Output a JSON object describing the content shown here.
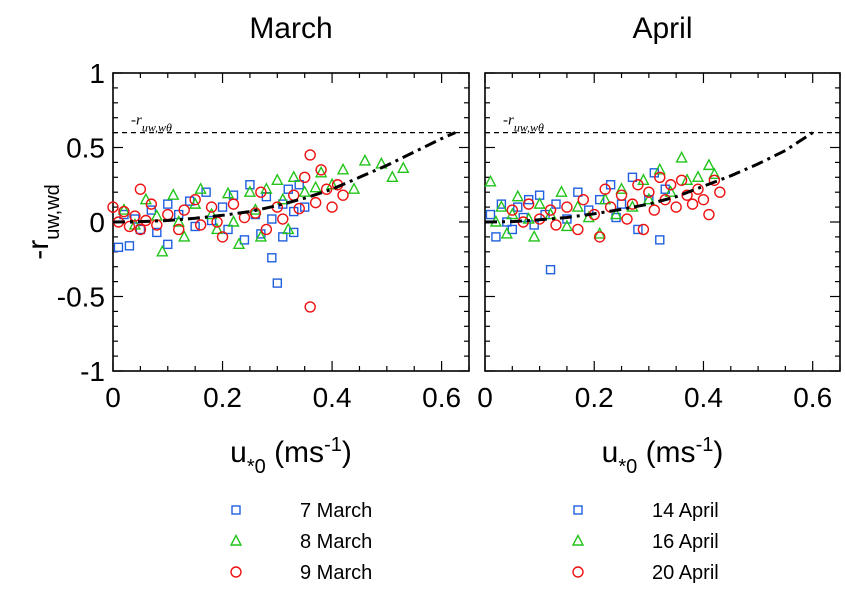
{
  "chart_data": [
    {
      "type": "scatter",
      "title": "March",
      "ylabel": "-r",
      "ylabel_sub": "uw,wd",
      "xlabel": "u",
      "xlabel_sub": "*0",
      "xlabel_unit": " (ms",
      "xlabel_sup": "-1",
      "xlabel_close": ")",
      "xlim": [
        0,
        0.65
      ],
      "ylim": [
        -1,
        1
      ],
      "xticks": [
        "0",
        "0.2",
        "0.4",
        "0.6"
      ],
      "yticks": [
        "1",
        "0.5",
        "0",
        "-0.5",
        "-1"
      ],
      "reference_line": {
        "y": 0.6,
        "label": "-r",
        "label_sub": "uw,wθ"
      },
      "fit_curve": [
        [
          0,
          0
        ],
        [
          0.05,
          0.003
        ],
        [
          0.1,
          0.01
        ],
        [
          0.15,
          0.025
        ],
        [
          0.2,
          0.045
        ],
        [
          0.25,
          0.07
        ],
        [
          0.3,
          0.11
        ],
        [
          0.35,
          0.16
        ],
        [
          0.4,
          0.22
        ],
        [
          0.45,
          0.3
        ],
        [
          0.5,
          0.38
        ],
        [
          0.55,
          0.47
        ],
        [
          0.6,
          0.56
        ],
        [
          0.625,
          0.6
        ]
      ],
      "series": [
        {
          "name": "7 March",
          "marker": "square",
          "color": "#1f5fe0",
          "points": [
            [
              0.01,
              -0.17
            ],
            [
              0.03,
              -0.16
            ],
            [
              0.02,
              0.05
            ],
            [
              0.04,
              0.02
            ],
            [
              0.05,
              -0.05
            ],
            [
              0.07,
              0.08
            ],
            [
              0.08,
              -0.07
            ],
            [
              0.1,
              0.12
            ],
            [
              0.1,
              -0.15
            ],
            [
              0.12,
              0.05
            ],
            [
              0.14,
              0.14
            ],
            [
              0.15,
              -0.03
            ],
            [
              0.17,
              0.2
            ],
            [
              0.18,
              0.01
            ],
            [
              0.2,
              0.1
            ],
            [
              0.21,
              -0.05
            ],
            [
              0.22,
              0.18
            ],
            [
              0.24,
              -0.12
            ],
            [
              0.25,
              0.25
            ],
            [
              0.26,
              0.05
            ],
            [
              0.27,
              -0.08
            ],
            [
              0.28,
              0.17
            ],
            [
              0.29,
              0.02
            ],
            [
              0.29,
              -0.24
            ],
            [
              0.3,
              -0.41
            ],
            [
              0.31,
              0.12
            ],
            [
              0.31,
              -0.1
            ],
            [
              0.32,
              0.22
            ],
            [
              0.33,
              0.07
            ],
            [
              0.33,
              -0.07
            ],
            [
              0.34,
              0.25
            ],
            [
              0.35,
              0.1
            ]
          ]
        },
        {
          "name": "8 March",
          "marker": "triangle",
          "color": "#22c41a",
          "points": [
            [
              0.02,
              0.08
            ],
            [
              0.04,
              -0.02
            ],
            [
              0.06,
              0.15
            ],
            [
              0.08,
              0.04
            ],
            [
              0.09,
              -0.2
            ],
            [
              0.11,
              0.18
            ],
            [
              0.12,
              0.0
            ],
            [
              0.13,
              -0.1
            ],
            [
              0.15,
              0.12
            ],
            [
              0.16,
              0.22
            ],
            [
              0.18,
              0.05
            ],
            [
              0.19,
              -0.05
            ],
            [
              0.21,
              0.19
            ],
            [
              0.22,
              0.0
            ],
            [
              0.23,
              -0.15
            ],
            [
              0.25,
              0.2
            ],
            [
              0.26,
              0.08
            ],
            [
              0.27,
              -0.1
            ],
            [
              0.28,
              0.22
            ],
            [
              0.3,
              0.28
            ],
            [
              0.31,
              0.15
            ],
            [
              0.32,
              -0.05
            ],
            [
              0.33,
              0.3
            ],
            [
              0.35,
              0.2
            ],
            [
              0.37,
              0.23
            ],
            [
              0.38,
              0.33
            ],
            [
              0.4,
              0.25
            ],
            [
              0.42,
              0.35
            ],
            [
              0.44,
              0.22
            ],
            [
              0.46,
              0.41
            ],
            [
              0.49,
              0.39
            ],
            [
              0.51,
              0.3
            ],
            [
              0.53,
              0.36
            ]
          ]
        },
        {
          "name": "9 March",
          "marker": "circle",
          "color": "#ee1111",
          "points": [
            [
              0.0,
              0.1
            ],
            [
              0.01,
              0.0
            ],
            [
              0.02,
              0.07
            ],
            [
              0.03,
              -0.03
            ],
            [
              0.04,
              0.04
            ],
            [
              0.05,
              -0.05
            ],
            [
              0.05,
              0.22
            ],
            [
              0.06,
              0.01
            ],
            [
              0.07,
              0.12
            ],
            [
              0.08,
              -0.02
            ],
            [
              0.1,
              0.05
            ],
            [
              0.12,
              -0.05
            ],
            [
              0.13,
              0.08
            ],
            [
              0.15,
              0.15
            ],
            [
              0.16,
              -0.02
            ],
            [
              0.18,
              0.1
            ],
            [
              0.19,
              0.0
            ],
            [
              0.2,
              -0.1
            ],
            [
              0.22,
              0.12
            ],
            [
              0.24,
              0.03
            ],
            [
              0.26,
              0.06
            ],
            [
              0.27,
              0.2
            ],
            [
              0.28,
              -0.05
            ],
            [
              0.3,
              0.1
            ],
            [
              0.31,
              0.02
            ],
            [
              0.33,
              0.18
            ],
            [
              0.34,
              0.09
            ],
            [
              0.35,
              0.3
            ],
            [
              0.36,
              0.45
            ],
            [
              0.36,
              -0.57
            ],
            [
              0.37,
              0.13
            ],
            [
              0.38,
              0.35
            ],
            [
              0.39,
              0.22
            ],
            [
              0.4,
              0.1
            ],
            [
              0.41,
              0.25
            ],
            [
              0.42,
              0.18
            ]
          ]
        }
      ]
    },
    {
      "type": "scatter",
      "title": "April",
      "xlabel": "u",
      "xlabel_sub": "*0",
      "xlabel_unit": " (ms",
      "xlabel_sup": "-1",
      "xlabel_close": ")",
      "xlim": [
        0,
        0.65
      ],
      "ylim": [
        -1,
        1
      ],
      "xticks": [
        "0",
        "0.2",
        "0.4",
        "0.6"
      ],
      "reference_line": {
        "y": 0.6,
        "label": "-r",
        "label_sub": "uw,wθ"
      },
      "fit_curve": [
        [
          0,
          0
        ],
        [
          0.05,
          0.003
        ],
        [
          0.1,
          0.015
        ],
        [
          0.15,
          0.03
        ],
        [
          0.2,
          0.055
        ],
        [
          0.25,
          0.085
        ],
        [
          0.3,
          0.12
        ],
        [
          0.35,
          0.17
        ],
        [
          0.4,
          0.24
        ],
        [
          0.45,
          0.31
        ],
        [
          0.5,
          0.39
        ],
        [
          0.55,
          0.48
        ],
        [
          0.6,
          0.6
        ]
      ],
      "series": [
        {
          "name": "14 April",
          "marker": "square",
          "color": "#1f5fe0",
          "points": [
            [
              0.01,
              0.05
            ],
            [
              0.02,
              -0.1
            ],
            [
              0.03,
              0.12
            ],
            [
              0.04,
              0.0
            ],
            [
              0.05,
              -0.05
            ],
            [
              0.06,
              0.1
            ],
            [
              0.07,
              0.03
            ],
            [
              0.08,
              0.15
            ],
            [
              0.09,
              -0.02
            ],
            [
              0.1,
              0.18
            ],
            [
              0.11,
              0.05
            ],
            [
              0.12,
              -0.32
            ],
            [
              0.13,
              0.12
            ],
            [
              0.15,
              0.02
            ],
            [
              0.17,
              0.2
            ],
            [
              0.19,
              0.08
            ],
            [
              0.21,
              0.15
            ],
            [
              0.23,
              0.25
            ],
            [
              0.24,
              0.03
            ],
            [
              0.25,
              0.12
            ],
            [
              0.27,
              0.3
            ],
            [
              0.28,
              -0.05
            ],
            [
              0.3,
              0.15
            ],
            [
              0.31,
              0.33
            ],
            [
              0.32,
              -0.12
            ],
            [
              0.33,
              0.22
            ]
          ]
        },
        {
          "name": "16 April",
          "marker": "triangle",
          "color": "#22c41a",
          "points": [
            [
              0.01,
              0.27
            ],
            [
              0.02,
              0.0
            ],
            [
              0.03,
              0.1
            ],
            [
              0.04,
              -0.08
            ],
            [
              0.05,
              0.05
            ],
            [
              0.06,
              0.17
            ],
            [
              0.08,
              0.02
            ],
            [
              0.09,
              -0.1
            ],
            [
              0.1,
              0.12
            ],
            [
              0.12,
              0.05
            ],
            [
              0.14,
              0.2
            ],
            [
              0.15,
              -0.03
            ],
            [
              0.17,
              0.1
            ],
            [
              0.19,
              0.03
            ],
            [
              0.21,
              -0.08
            ],
            [
              0.22,
              0.15
            ],
            [
              0.24,
              0.05
            ],
            [
              0.25,
              0.22
            ],
            [
              0.27,
              0.1
            ],
            [
              0.29,
              0.28
            ],
            [
              0.3,
              0.15
            ],
            [
              0.32,
              0.35
            ],
            [
              0.34,
              0.2
            ],
            [
              0.36,
              0.43
            ],
            [
              0.37,
              0.28
            ],
            [
              0.39,
              0.3
            ],
            [
              0.41,
              0.38
            ],
            [
              0.42,
              0.32
            ]
          ]
        },
        {
          "name": "20 April",
          "marker": "circle",
          "color": "#ee1111",
          "points": [
            [
              0.05,
              0.08
            ],
            [
              0.07,
              0.0
            ],
            [
              0.08,
              0.12
            ],
            [
              0.1,
              0.02
            ],
            [
              0.12,
              0.08
            ],
            [
              0.13,
              -0.02
            ],
            [
              0.15,
              0.1
            ],
            [
              0.17,
              -0.05
            ],
            [
              0.18,
              0.15
            ],
            [
              0.2,
              0.05
            ],
            [
              0.21,
              -0.1
            ],
            [
              0.22,
              0.22
            ],
            [
              0.23,
              0.1
            ],
            [
              0.25,
              0.18
            ],
            [
              0.26,
              0.02
            ],
            [
              0.27,
              0.12
            ],
            [
              0.28,
              0.25
            ],
            [
              0.29,
              -0.05
            ],
            [
              0.3,
              0.2
            ],
            [
              0.31,
              0.08
            ],
            [
              0.32,
              0.3
            ],
            [
              0.33,
              0.15
            ],
            [
              0.34,
              0.25
            ],
            [
              0.35,
              0.1
            ],
            [
              0.36,
              0.28
            ],
            [
              0.37,
              0.18
            ],
            [
              0.38,
              0.12
            ],
            [
              0.39,
              0.22
            ],
            [
              0.4,
              0.15
            ],
            [
              0.41,
              0.05
            ],
            [
              0.42,
              0.28
            ],
            [
              0.43,
              0.2
            ]
          ]
        }
      ]
    }
  ]
}
